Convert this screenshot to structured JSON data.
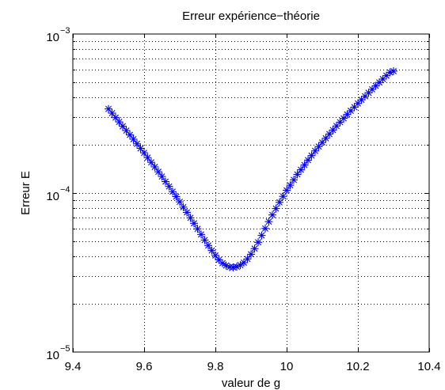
{
  "chart_data": {
    "type": "scatter",
    "title": "Erreur expérience−théorie",
    "xlabel": "valeur de g",
    "ylabel": "Erreur E",
    "xlim": [
      9.4,
      10.4
    ],
    "ylim": [
      1e-05,
      0.001
    ],
    "yscale": "log",
    "grid": true,
    "x_ticks": [
      9.4,
      9.6,
      9.8,
      10,
      10.2,
      10.4
    ],
    "x_tick_labels": [
      "9.4",
      "9.6",
      "9.8",
      "10",
      "10.2",
      "10.4"
    ],
    "y_ticks": [
      1e-05,
      0.0001,
      0.001
    ],
    "y_tick_labels": [
      {
        "base": "10",
        "exp": "−5"
      },
      {
        "base": "10",
        "exp": "−4"
      },
      {
        "base": "10",
        "exp": "−3"
      }
    ],
    "marker": "asterisk",
    "series": [
      {
        "color": "#0000ff",
        "x_start": 9.5,
        "x_step": 0.01,
        "y": [
          0.000338,
          0.000318,
          0.000298,
          0.00028,
          0.000263,
          0.000247,
          0.000232,
          0.000218,
          0.000204,
          0.000191,
          0.000179,
          0.000167,
          0.000156,
          0.000146,
          0.000136,
          0.000127,
          0.000118,
          0.00011,
          0.000102,
          9.5e-05,
          8.8e-05,
          8.15e-05,
          7.55e-05,
          6.98e-05,
          6.45e-05,
          5.95e-05,
          5.49e-05,
          5.06e-05,
          4.68e-05,
          4.35e-05,
          4.05e-05,
          3.8e-05,
          3.62e-05,
          3.5e-05,
          3.42e-05,
          3.41e-05,
          3.44e-05,
          3.52e-05,
          3.65e-05,
          3.85e-05,
          4.12e-05,
          4.47e-05,
          4.9e-05,
          5.41e-05,
          5.98e-05,
          6.61e-05,
          7.28e-05,
          7.99e-05,
          8.74e-05,
          9.53e-05,
          0.000104,
          0.000112,
          0.000121,
          0.000131,
          0.00014,
          0.00015,
          0.000161,
          0.000172,
          0.000184,
          0.000196,
          0.000208,
          0.000221,
          0.000235,
          0.000249,
          0.000264,
          0.000279,
          0.000295,
          0.000312,
          0.000329,
          0.000347,
          0.000366,
          0.000386,
          0.000406,
          0.000427,
          0.000449,
          0.000472,
          0.000496,
          0.000521,
          0.000547,
          0.000574,
          0.000584
        ]
      }
    ]
  }
}
